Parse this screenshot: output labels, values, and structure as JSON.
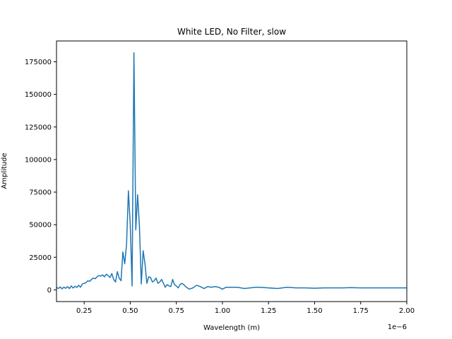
{
  "chart_data": {
    "type": "line",
    "title": "White LED, No Filter, slow",
    "xlabel": "Wavelength (m)",
    "ylabel": "Amplitude",
    "x_offset_label": "1e−6",
    "xlim": [
      0.1,
      2.0
    ],
    "ylim": [
      -9000,
      191000
    ],
    "grid": false,
    "x_ticks": [
      0.25,
      0.5,
      0.75,
      1.0,
      1.25,
      1.5,
      1.75,
      2.0
    ],
    "x_tick_labels": [
      "0.25",
      "0.50",
      "0.75",
      "1.00",
      "1.25",
      "1.50",
      "1.75",
      "2.00"
    ],
    "y_ticks": [
      0,
      25000,
      50000,
      75000,
      100000,
      125000,
      150000,
      175000
    ],
    "y_tick_labels": [
      "0",
      "25000",
      "50000",
      "75000",
      "100000",
      "125000",
      "150000",
      "175000"
    ],
    "series": [
      {
        "color": "#1f77b4",
        "x": [
          0.1,
          0.11,
          0.12,
          0.13,
          0.14,
          0.15,
          0.16,
          0.17,
          0.18,
          0.19,
          0.2,
          0.21,
          0.22,
          0.23,
          0.24,
          0.25,
          0.26,
          0.27,
          0.28,
          0.29,
          0.3,
          0.31,
          0.32,
          0.33,
          0.34,
          0.35,
          0.36,
          0.37,
          0.38,
          0.39,
          0.4,
          0.41,
          0.42,
          0.43,
          0.44,
          0.45,
          0.46,
          0.47,
          0.48,
          0.49,
          0.5,
          0.51,
          0.52,
          0.53,
          0.54,
          0.55,
          0.56,
          0.57,
          0.58,
          0.59,
          0.6,
          0.61,
          0.62,
          0.63,
          0.64,
          0.65,
          0.66,
          0.67,
          0.68,
          0.69,
          0.7,
          0.71,
          0.72,
          0.73,
          0.74,
          0.75,
          0.76,
          0.77,
          0.78,
          0.79,
          0.8,
          0.82,
          0.84,
          0.86,
          0.88,
          0.9,
          0.92,
          0.94,
          0.96,
          0.98,
          1.0,
          1.02,
          1.05,
          1.08,
          1.1,
          1.12,
          1.15,
          1.18,
          1.2,
          1.25,
          1.3,
          1.35,
          1.4,
          1.45,
          1.5,
          1.55,
          1.6,
          1.65,
          1.7,
          1.75,
          1.8,
          1.9,
          2.0
        ],
        "y": [
          2000,
          1000,
          2200,
          800,
          2100,
          1200,
          2500,
          1000,
          3000,
          1400,
          2800,
          1800,
          3500,
          2000,
          4500,
          5000,
          5500,
          7000,
          6500,
          8000,
          9000,
          8500,
          10000,
          11000,
          10500,
          11500,
          10000,
          12000,
          11000,
          9500,
          12500,
          8000,
          6000,
          14000,
          9000,
          7000,
          29000,
          20000,
          35000,
          76000,
          50000,
          3000,
          182000,
          46000,
          73000,
          48000,
          4500,
          30000,
          20000,
          5000,
          10000,
          9500,
          6000,
          7000,
          9000,
          5000,
          6000,
          8000,
          5000,
          2000,
          4000,
          3000,
          2500,
          8000,
          4000,
          3000,
          1500,
          4000,
          5000,
          4000,
          2500,
          500,
          1500,
          3500,
          2500,
          1000,
          2500,
          2000,
          2500,
          2000,
          500,
          2000,
          2000,
          2000,
          1500,
          1000,
          1500,
          2000,
          2000,
          1500,
          1000,
          2000,
          1500,
          1500,
          1200,
          1500,
          1500,
          1500,
          1700,
          1500,
          1500,
          1500,
          1500
        ]
      }
    ]
  }
}
